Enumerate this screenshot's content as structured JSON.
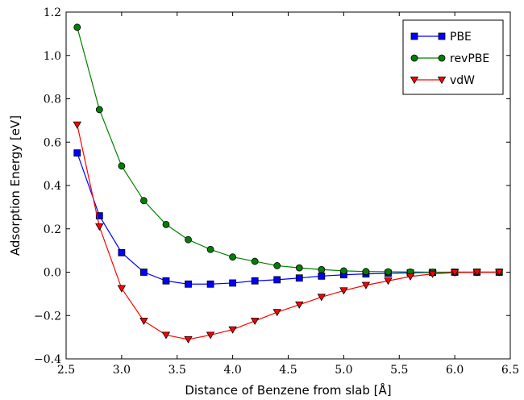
{
  "chart_data": {
    "type": "line",
    "xlabel": "Distance of Benzene from slab [Å]",
    "ylabel": "Adsorption Energy [eV]",
    "xlim": [
      2.5,
      6.5
    ],
    "ylim": [
      -0.4,
      1.2
    ],
    "xticks": [
      2.5,
      3.0,
      3.5,
      4.0,
      4.5,
      5.0,
      5.5,
      6.0,
      6.5
    ],
    "yticks": [
      -0.4,
      -0.2,
      0.0,
      0.2,
      0.4,
      0.6,
      0.8,
      1.0,
      1.2
    ],
    "xtick_labels": [
      "2.5",
      "3.0",
      "3.5",
      "4.0",
      "4.5",
      "5.0",
      "5.5",
      "6.0",
      "6.5"
    ],
    "ytick_labels": [
      "−0.4",
      "−0.2",
      "0.0",
      "0.2",
      "0.4",
      "0.6",
      "0.8",
      "1.0",
      "1.2"
    ],
    "grid": false,
    "legend_position": "top-right",
    "x": [
      2.6,
      2.8,
      3.0,
      3.2,
      3.4,
      3.6,
      3.8,
      4.0,
      4.2,
      4.4,
      4.6,
      4.8,
      5.0,
      5.2,
      5.4,
      5.6,
      5.8,
      6.0,
      6.2,
      6.4
    ],
    "series": [
      {
        "name": "PBE",
        "color": "#0000ff",
        "marker": "square",
        "values": [
          0.55,
          0.26,
          0.09,
          0.0,
          -0.04,
          -0.055,
          -0.055,
          -0.05,
          -0.04,
          -0.035,
          -0.027,
          -0.018,
          -0.012,
          -0.008,
          -0.005,
          -0.003,
          -0.001,
          0.0,
          0.0,
          0.0
        ]
      },
      {
        "name": "revPBE",
        "color": "#008000",
        "marker": "circle",
        "values": [
          1.13,
          0.75,
          0.49,
          0.33,
          0.22,
          0.15,
          0.105,
          0.07,
          0.05,
          0.03,
          0.02,
          0.012,
          0.006,
          0.003,
          0.002,
          0.001,
          0.0,
          0.0,
          0.0,
          0.0
        ]
      },
      {
        "name": "vdW",
        "color": "#ff0000",
        "marker": "triangle-down",
        "values": [
          0.68,
          0.21,
          -0.075,
          -0.225,
          -0.29,
          -0.31,
          -0.29,
          -0.265,
          -0.225,
          -0.185,
          -0.15,
          -0.115,
          -0.085,
          -0.06,
          -0.04,
          -0.02,
          -0.008,
          -0.002,
          0.0,
          0.0
        ]
      }
    ]
  }
}
